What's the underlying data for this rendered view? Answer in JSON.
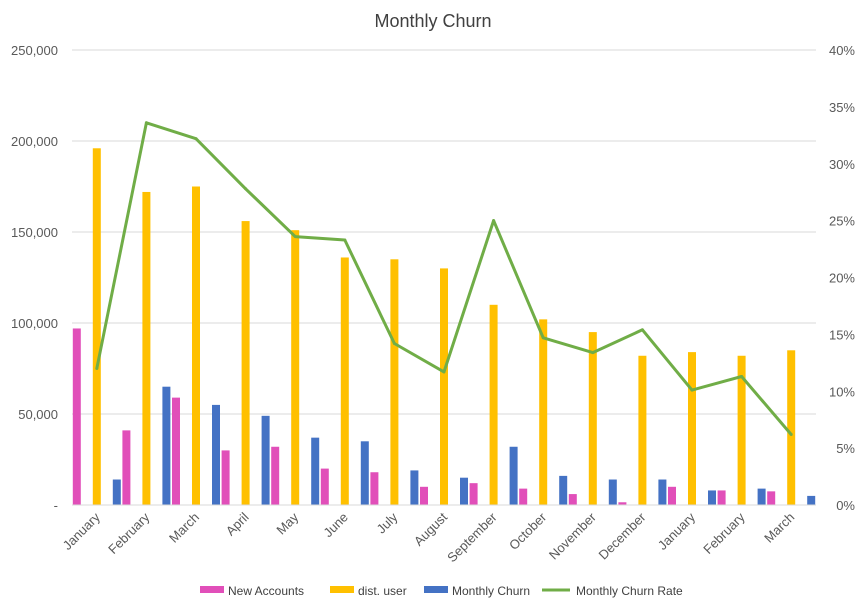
{
  "chart_data": {
    "type": "bar",
    "title": "Monthly Churn",
    "categories": [
      "January",
      "February",
      "March",
      "April",
      "May",
      "June",
      "July",
      "August",
      "September",
      "October",
      "November",
      "December",
      "January",
      "February",
      "March"
    ],
    "series": [
      {
        "name": "New Accounts",
        "kind": "bar",
        "axis": "left",
        "color": "#E14FB9",
        "values": [
          97000,
          41000,
          59000,
          30000,
          32000,
          20000,
          18000,
          10000,
          12000,
          9000,
          6000,
          1500,
          10000,
          8000,
          7500
        ]
      },
      {
        "name": "dist. user",
        "kind": "bar",
        "axis": "left",
        "color": "#FFC000",
        "values": [
          196000,
          172000,
          175000,
          156000,
          151000,
          136000,
          135000,
          130000,
          110000,
          102000,
          95000,
          82000,
          84000,
          82000,
          85000
        ]
      },
      {
        "name": "Monthly Churn",
        "kind": "bar",
        "axis": "left",
        "color": "#4472C4",
        "values": [
          14000,
          65000,
          55000,
          49000,
          37000,
          35000,
          19000,
          15000,
          32000,
          16000,
          14000,
          14000,
          8000,
          9000,
          5000
        ]
      },
      {
        "name": "Monthly Churn Rate",
        "kind": "line",
        "axis": "right",
        "color": "#70AD47",
        "values": [
          0.12,
          0.336,
          0.322,
          0.278,
          0.236,
          0.233,
          0.142,
          0.117,
          0.25,
          0.147,
          0.134,
          0.154,
          0.101,
          0.113,
          0.062
        ]
      }
    ],
    "yLeft": {
      "min": 0,
      "max": 250000,
      "ticks": [
        0,
        50000,
        100000,
        150000,
        200000,
        250000
      ],
      "tickLabels": [
        "-",
        "50,000",
        "100,000",
        "150,000",
        "200,000",
        "250,000"
      ]
    },
    "yRight": {
      "min": 0,
      "max": 0.4,
      "ticks": [
        0,
        0.05,
        0.1,
        0.15,
        0.2,
        0.25,
        0.3,
        0.35,
        0.4
      ],
      "tickLabels": [
        "0%",
        "5%",
        "10%",
        "15%",
        "20%",
        "25%",
        "30%",
        "35%",
        "40%"
      ]
    },
    "grid": true,
    "legend": "bottom",
    "colors": {
      "grid": "#D9D9D9",
      "text": "#595959"
    }
  }
}
